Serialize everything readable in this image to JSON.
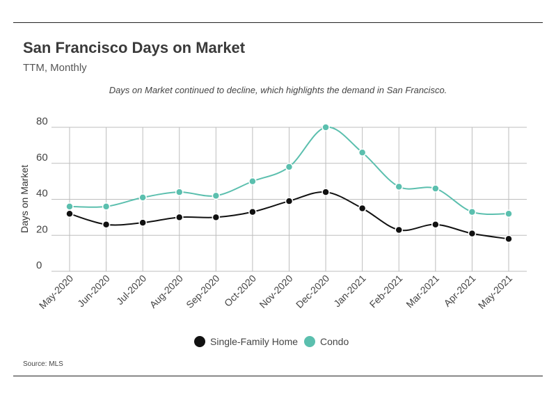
{
  "header": {
    "title": "San Francisco Days on Market",
    "subtitle": "TTM, Monthly"
  },
  "annotation": "Days on Market continued to decline, which highlights the demand in San Francisco.",
  "source": "Source:  MLS",
  "colors": {
    "single_family": "#111111",
    "condo": "#5bbfae",
    "grid": "#bdbdbd"
  },
  "chart_data": {
    "type": "line",
    "title": "San Francisco Days on Market",
    "subtitle": "TTM, Monthly",
    "ylabel": "Days on Market",
    "xlabel": "",
    "ylim": [
      0,
      80
    ],
    "yticks": [
      0,
      20,
      40,
      60,
      80
    ],
    "grid": true,
    "legend": "bottom-center",
    "categories": [
      "May-2020",
      "Jun-2020",
      "Jul-2020",
      "Aug-2020",
      "Sep-2020",
      "Oct-2020",
      "Nov-2020",
      "Dec-2020",
      "Jan-2021",
      "Feb-2021",
      "Mar-2021",
      "Apr-2021",
      "May-2021"
    ],
    "series": [
      {
        "name": "Single-Family Home",
        "color": "#111111",
        "values": [
          32,
          26,
          27,
          30,
          30,
          33,
          39,
          44,
          35,
          23,
          26,
          21,
          18
        ]
      },
      {
        "name": "Condo",
        "color": "#5bbfae",
        "values": [
          36,
          36,
          41,
          44,
          42,
          50,
          58,
          80,
          66,
          47,
          46,
          33,
          32
        ]
      }
    ]
  }
}
